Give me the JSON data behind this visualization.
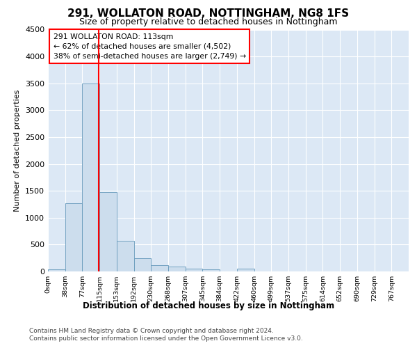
{
  "title1": "291, WOLLATON ROAD, NOTTINGHAM, NG8 1FS",
  "title2": "Size of property relative to detached houses in Nottingham",
  "xlabel": "Distribution of detached houses by size in Nottingham",
  "ylabel": "Number of detached properties",
  "bin_labels": [
    "0sqm",
    "38sqm",
    "77sqm",
    "115sqm",
    "153sqm",
    "192sqm",
    "230sqm",
    "268sqm",
    "307sqm",
    "345sqm",
    "384sqm",
    "422sqm",
    "460sqm",
    "499sqm",
    "537sqm",
    "575sqm",
    "614sqm",
    "652sqm",
    "690sqm",
    "729sqm",
    "767sqm"
  ],
  "bar_values": [
    40,
    1270,
    3500,
    1480,
    575,
    240,
    120,
    85,
    55,
    40,
    0,
    55,
    0,
    0,
    0,
    0,
    0,
    0,
    0,
    0,
    0
  ],
  "bar_color": "#ccdded",
  "bar_edge_color": "#6699bb",
  "property_line_bin": 2.95,
  "annotation_text": "291 WOLLATON ROAD: 113sqm\n← 62% of detached houses are smaller (4,502)\n38% of semi-detached houses are larger (2,749) →",
  "ylim": [
    0,
    4500
  ],
  "yticks": [
    0,
    500,
    1000,
    1500,
    2000,
    2500,
    3000,
    3500,
    4000,
    4500
  ],
  "plot_bg_color": "#dce8f5",
  "footer1": "Contains HM Land Registry data © Crown copyright and database right 2024.",
  "footer2": "Contains public sector information licensed under the Open Government Licence v3.0."
}
